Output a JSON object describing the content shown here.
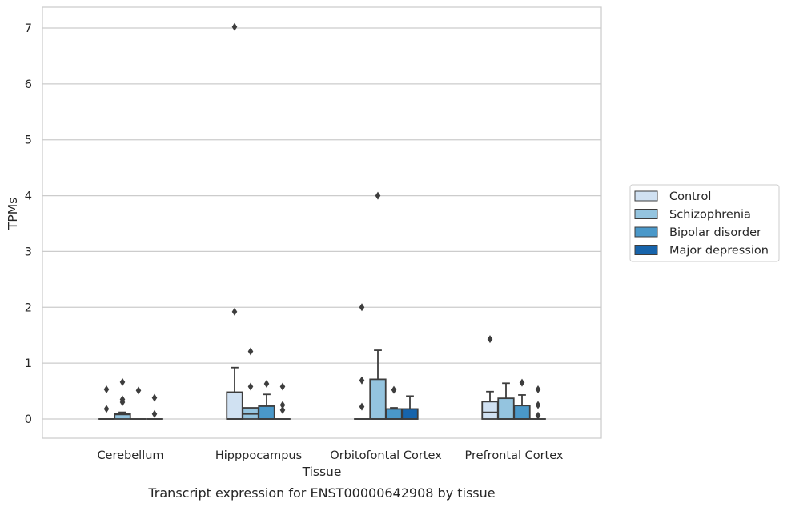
{
  "caption": "Transcript expression for ENST00000642908 by tissue",
  "chart_data": {
    "type": "boxplot",
    "xlabel": "Tissue",
    "ylabel": "TPMs",
    "ylim": [
      -0.35,
      7.38
    ],
    "yticks": [
      0,
      1,
      2,
      3,
      4,
      5,
      6,
      7
    ],
    "grid": "horizontal",
    "legend_position": "center-right",
    "categories": [
      "Cerebellum",
      "Hipppocampus",
      "Orbitofontal Cortex",
      "Prefrontal Cortex"
    ],
    "series": [
      {
        "name": "Control",
        "color": "#d0e1f2",
        "boxes": [
          {
            "whislo": 0,
            "q1": 0,
            "med": 0,
            "q3": 0,
            "whishi": 0,
            "fliers": [
              0.53,
              0.18
            ]
          },
          {
            "whislo": 0,
            "q1": 0,
            "med": 0,
            "q3": 0.48,
            "whishi": 0.92,
            "fliers": [
              7.02,
              1.92
            ]
          },
          {
            "whislo": 0,
            "q1": 0,
            "med": 0,
            "q3": 0,
            "whishi": 0,
            "fliers": [
              2.0,
              0.69,
              0.22
            ]
          },
          {
            "whislo": 0,
            "q1": 0,
            "med": 0.12,
            "q3": 0.31,
            "whishi": 0.49,
            "fliers": [
              1.43
            ]
          }
        ]
      },
      {
        "name": "Schizophrenia",
        "color": "#94c4df",
        "boxes": [
          {
            "whislo": 0,
            "q1": 0,
            "med": 0.08,
            "q3": 0.1,
            "whishi": 0.12,
            "fliers": [
              0.66,
              0.35,
              0.3
            ]
          },
          {
            "whislo": 0,
            "q1": 0,
            "med": 0.09,
            "q3": 0.2,
            "whishi": 0.2,
            "fliers": [
              1.21,
              0.58
            ]
          },
          {
            "whislo": 0,
            "q1": 0,
            "med": 0,
            "q3": 0.71,
            "whishi": 1.23,
            "fliers": [
              4.0
            ]
          },
          {
            "whislo": 0,
            "q1": 0,
            "med": 0,
            "q3": 0.37,
            "whishi": 0.64,
            "fliers": []
          }
        ]
      },
      {
        "name": "Bipolar disorder",
        "color": "#4a98c9",
        "boxes": [
          {
            "whislo": 0,
            "q1": 0,
            "med": 0,
            "q3": 0,
            "whishi": 0,
            "fliers": [
              0.51
            ]
          },
          {
            "whislo": 0,
            "q1": 0,
            "med": 0,
            "q3": 0.23,
            "whishi": 0.44,
            "fliers": [
              0.63
            ]
          },
          {
            "whislo": 0,
            "q1": 0,
            "med": 0,
            "q3": 0.18,
            "whishi": 0.2,
            "fliers": [
              0.52
            ]
          },
          {
            "whislo": 0,
            "q1": 0,
            "med": 0,
            "q3": 0.24,
            "whishi": 0.43,
            "fliers": [
              0.65
            ]
          }
        ]
      },
      {
        "name": "Major depression",
        "color": "#1764ab",
        "boxes": [
          {
            "whislo": 0,
            "q1": 0,
            "med": 0,
            "q3": 0,
            "whishi": 0,
            "fliers": [
              0.38,
              0.09
            ]
          },
          {
            "whislo": 0,
            "q1": 0,
            "med": 0,
            "q3": 0,
            "whishi": 0,
            "fliers": [
              0.58,
              0.25,
              0.16
            ]
          },
          {
            "whislo": 0,
            "q1": 0,
            "med": 0,
            "q3": 0.18,
            "whishi": 0.41,
            "fliers": []
          },
          {
            "whislo": 0,
            "q1": 0,
            "med": 0,
            "q3": 0,
            "whishi": 0,
            "fliers": [
              0.53,
              0.25,
              0.06
            ]
          }
        ]
      }
    ]
  }
}
